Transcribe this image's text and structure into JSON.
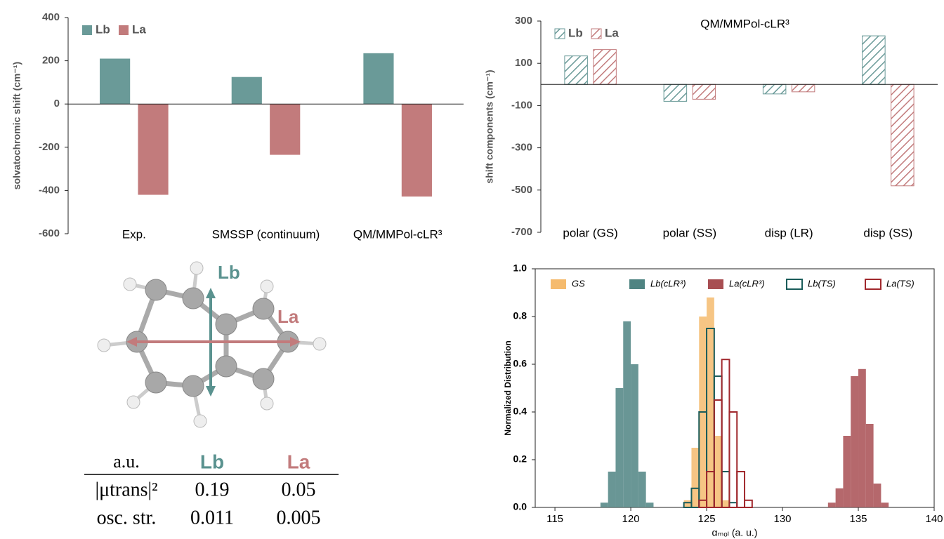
{
  "chart_data": [
    {
      "type": "bar",
      "ylabel": "solvatochromic shift (cm⁻¹)",
      "categories": [
        "Exp.",
        "SMSSP (continuum)",
        "QM/MMPol-cLR³"
      ],
      "series": [
        {
          "name": "Lb",
          "color": "#6a9a98",
          "values": [
            210,
            125,
            235
          ]
        },
        {
          "name": "La",
          "color": "#c27b7c",
          "values": [
            -420,
            -235,
            -428
          ]
        }
      ],
      "ylim": [
        -600,
        400
      ],
      "yticks": [
        -600,
        -400,
        -200,
        0,
        200,
        400
      ],
      "hatch": false,
      "legend": "top-left"
    },
    {
      "type": "bar",
      "title": "QM/MMPol-cLR³",
      "ylabel": "shift components (cm⁻¹)",
      "categories": [
        "polar (GS)",
        "polar (SS)",
        "disp (LR)",
        "disp (SS)"
      ],
      "series": [
        {
          "name": "Lb",
          "color": "#6a9a98",
          "values": [
            135,
            -80,
            -45,
            230
          ]
        },
        {
          "name": "La",
          "color": "#c27b7c",
          "values": [
            165,
            -70,
            -35,
            -480
          ]
        }
      ],
      "ylim": [
        -700,
        300
      ],
      "yticks": [
        -700,
        -500,
        -300,
        -100,
        100,
        300
      ],
      "hatch": true,
      "legend": "top-left"
    },
    {
      "type": "histogram",
      "xlabel": "αₘₒₗ (a. u.)",
      "ylabel": "Normalized Distribution",
      "series": [
        {
          "name": "GS",
          "color": "#f5bb6e",
          "style": "filled",
          "bins": [
            123.5,
            124,
            124.5,
            125,
            125.5,
            126,
            126.5
          ],
          "values": [
            0.03,
            0.25,
            0.8,
            0.88,
            0.3,
            0.03
          ]
        },
        {
          "name": "Lb(cLR³)",
          "color": "#4f8482",
          "style": "filled",
          "bins": [
            118,
            118.5,
            119,
            119.5,
            120,
            120.5,
            121,
            121.5
          ],
          "values": [
            0.02,
            0.15,
            0.5,
            0.78,
            0.6,
            0.15,
            0.02
          ]
        },
        {
          "name": "La(cLR³)",
          "color": "#a84e52",
          "style": "filled",
          "bins": [
            133,
            133.5,
            134,
            134.5,
            135,
            135.5,
            136,
            136.5,
            137
          ],
          "values": [
            0.02,
            0.08,
            0.3,
            0.55,
            0.58,
            0.35,
            0.1,
            0.02
          ]
        },
        {
          "name": "Lb(TS)",
          "color": "#1a5c5a",
          "style": "step",
          "bins": [
            123.5,
            124,
            124.5,
            125,
            125.5,
            126,
            126.5,
            127
          ],
          "values": [
            0.02,
            0.08,
            0.4,
            0.75,
            0.55,
            0.15,
            0.02
          ]
        },
        {
          "name": "La(TS)",
          "color": "#a0282d",
          "style": "step",
          "bins": [
            124.5,
            125,
            125.5,
            126,
            126.5,
            127,
            127.5,
            128
          ],
          "values": [
            0.03,
            0.15,
            0.45,
            0.62,
            0.4,
            0.15,
            0.03
          ]
        }
      ],
      "xlim": [
        113.7,
        140
      ],
      "xticks": [
        115,
        120,
        125,
        130,
        135,
        140
      ],
      "ylim": [
        0,
        1
      ],
      "yticks": [
        {
          "value": 0,
          "label": "0.0"
        },
        0.2,
        0.4,
        0.6,
        0.8,
        {
          "value": 1,
          "label": "1.0"
        }
      ],
      "legend": "top"
    }
  ],
  "diagram": {
    "labels": [
      "Lb",
      "La"
    ]
  },
  "table": {
    "header": [
      "a.u.",
      "Lb",
      "La"
    ],
    "rows": [
      [
        "|μtrans|²",
        "0.19",
        "0.05"
      ],
      [
        "osc. str.",
        "0.011",
        "0.005"
      ]
    ]
  }
}
